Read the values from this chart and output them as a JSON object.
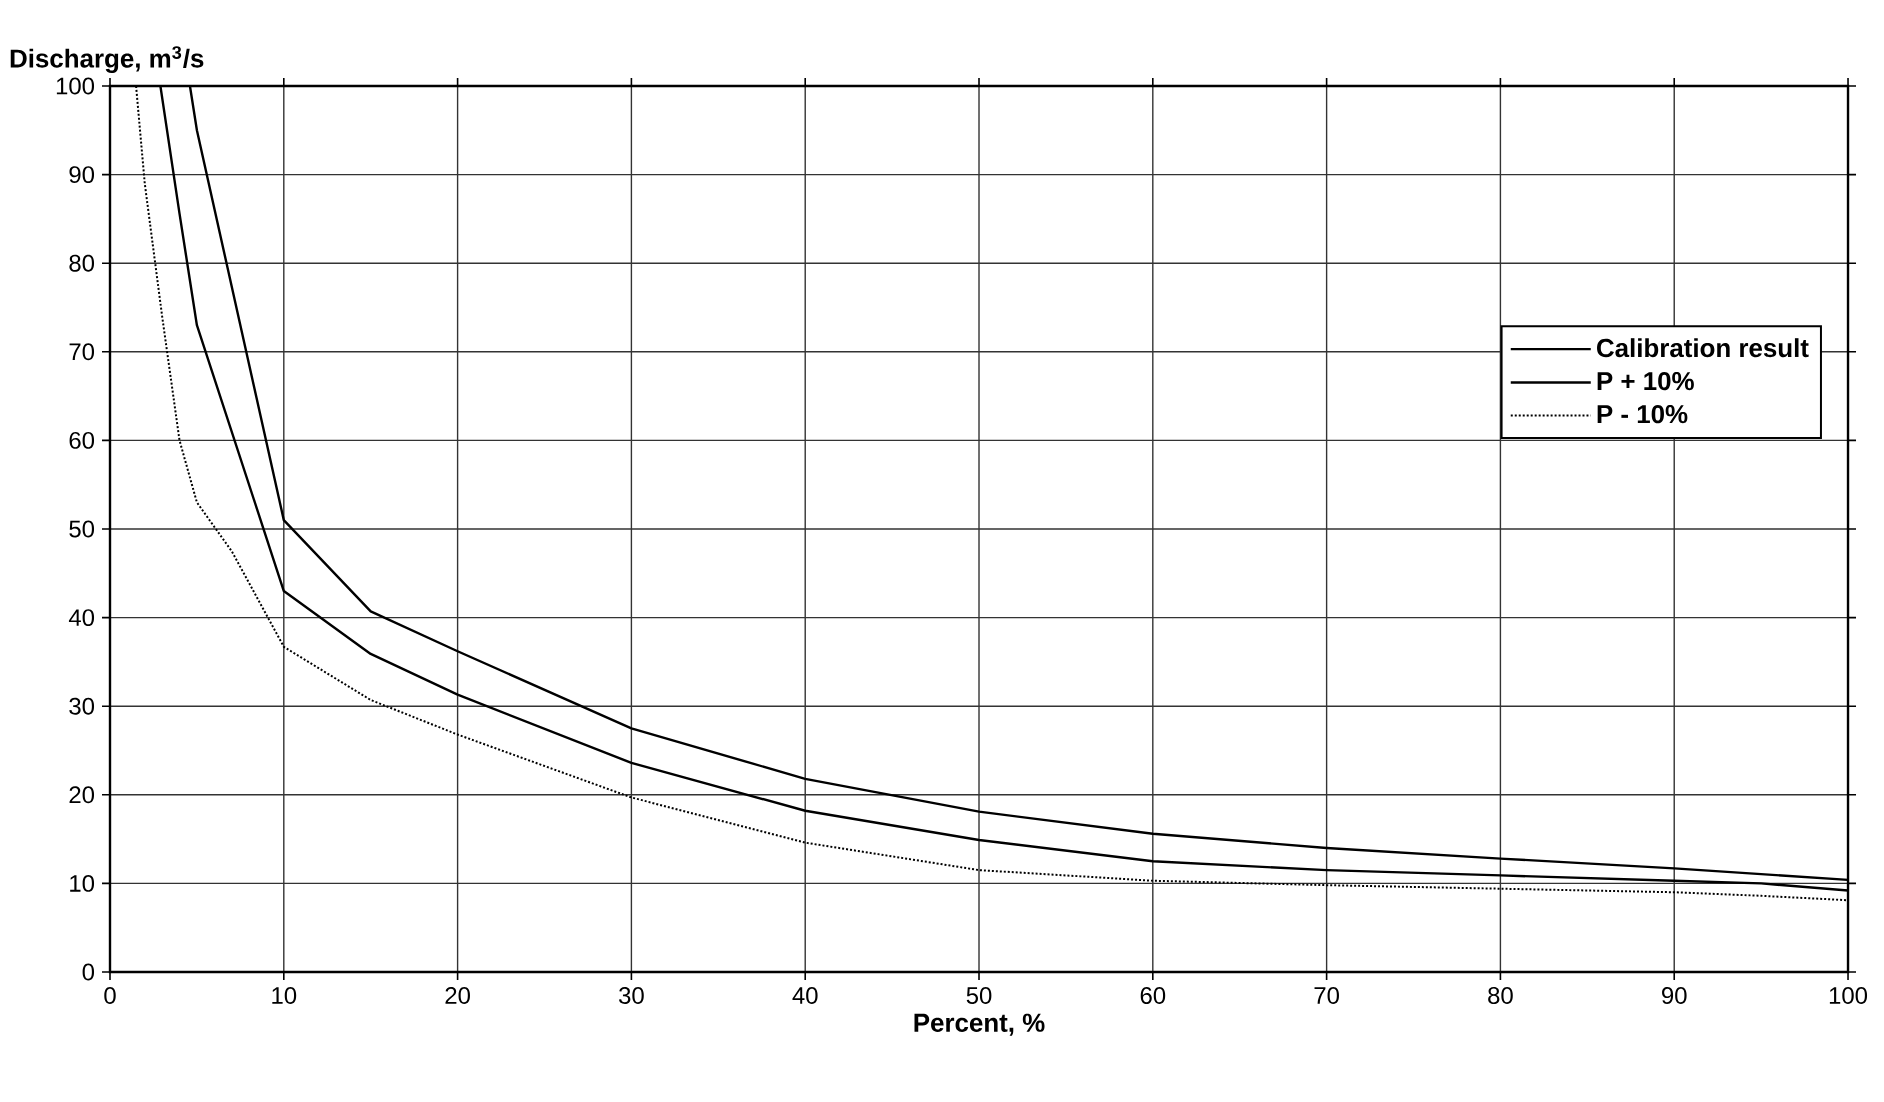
{
  "chart_data": {
    "type": "line",
    "xlabel": "Percent, %",
    "ylabel": "Discharge, m$^{3}$/s",
    "xlim": [
      0,
      100
    ],
    "ylim": [
      0,
      100
    ],
    "xticks": [
      0,
      10,
      20,
      30,
      40,
      50,
      60,
      70,
      80,
      90,
      100
    ],
    "yticks": [
      0,
      10,
      20,
      30,
      40,
      50,
      60,
      70,
      80,
      90,
      100
    ],
    "grid": true,
    "legend": "top right",
    "marker": "none",
    "series": [
      {
        "name": "Calibration result",
        "color": "#000000",
        "line_style": "solid",
        "x": [
          2.9,
          4,
          5,
          10,
          15,
          20,
          30,
          40,
          50,
          60,
          70,
          80,
          90,
          95,
          100
        ],
        "values": [
          100,
          85.6,
          73,
          43,
          35.9,
          31.3,
          23.6,
          18.2,
          14.9,
          12.5,
          11.5,
          10.9,
          10.3,
          10,
          9.2
        ]
      },
      {
        "name": "P + 10%",
        "color": "#000000",
        "line_style": "solid",
        "x": [
          4.6,
          5,
          10,
          15,
          20,
          30,
          40,
          50,
          60,
          70,
          80,
          90,
          100
        ],
        "values": [
          100,
          95,
          51,
          40.7,
          36.2,
          27.5,
          21.8,
          18.1,
          15.6,
          14,
          12.8,
          11.7,
          10.4
        ]
      },
      {
        "name": "P - 10%",
        "color": "#000000",
        "line_style": "dotted",
        "x": [
          1.5,
          2,
          3,
          4,
          5,
          7,
          10,
          15,
          20,
          30,
          40,
          50,
          60,
          70,
          80,
          90,
          95,
          100
        ],
        "values": [
          100,
          89,
          74,
          60,
          53,
          47.5,
          36.7,
          30.7,
          26.8,
          19.7,
          14.6,
          11.5,
          10.3,
          9.8,
          9.4,
          9,
          8.6,
          8.1
        ]
      }
    ]
  }
}
